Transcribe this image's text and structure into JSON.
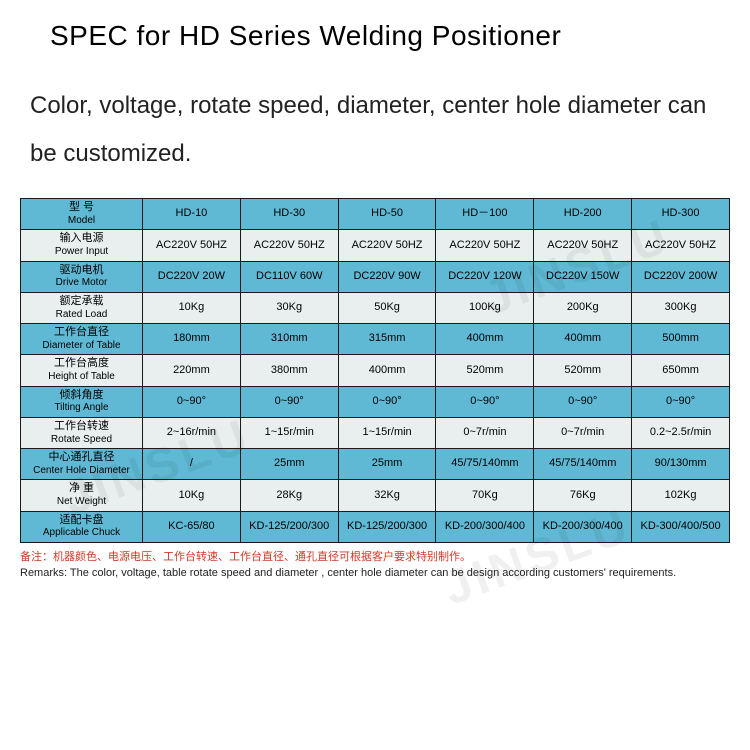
{
  "title": "SPEC for HD Series Welding Positioner",
  "subtitle": "Color, voltage, rotate speed, diameter, center hole diameter can be customized.",
  "watermark": "JINSLU",
  "colors": {
    "header_blue": "#5fb9d4",
    "header_off": "#e9efef",
    "border": "#1a1a1a",
    "remark_red": "#d03a2a",
    "text": "#000000",
    "background": "#ffffff"
  },
  "fonts": {
    "title_pt": 28,
    "subtitle_pt": 24,
    "table_pt": 11,
    "remark_pt": 11
  },
  "table": {
    "type": "table",
    "column_models": [
      "HD-10",
      "HD-30",
      "HD-50",
      "HD－100",
      "HD-200",
      "HD-300"
    ],
    "rows": [
      {
        "cn": "型 号",
        "en": "Model",
        "cells": [
          "HD-10",
          "HD-30",
          "HD-50",
          "HD－100",
          "HD-200",
          "HD-300"
        ],
        "style": "blue"
      },
      {
        "cn": "输入电源",
        "en": "Power Input",
        "cells": [
          "AC220V 50HZ",
          "AC220V 50HZ",
          "AC220V 50HZ",
          "AC220V 50HZ",
          "AC220V 50HZ",
          "AC220V 50HZ"
        ],
        "style": "off"
      },
      {
        "cn": "驱动电机",
        "en": "Drive Motor",
        "cells": [
          "DC220V 20W",
          "DC110V 60W",
          "DC220V 90W",
          "DC220V 120W",
          "DC220V 150W",
          "DC220V 200W"
        ],
        "style": "blue"
      },
      {
        "cn": "额定承载",
        "en": "Rated Load",
        "cells": [
          "10Kg",
          "30Kg",
          "50Kg",
          "100Kg",
          "200Kg",
          "300Kg"
        ],
        "style": "off"
      },
      {
        "cn": "工作台直径",
        "en": "Diameter of Table",
        "cells": [
          "180mm",
          "310mm",
          "315mm",
          "400mm",
          "400mm",
          "500mm"
        ],
        "style": "blue"
      },
      {
        "cn": "工作台高度",
        "en": "Height of Table",
        "cells": [
          "220mm",
          "380mm",
          "400mm",
          "520mm",
          "520mm",
          "650mm"
        ],
        "style": "off"
      },
      {
        "cn": "倾斜角度",
        "en": "Tilting Angle",
        "cells": [
          "0~90°",
          "0~90°",
          "0~90°",
          "0~90°",
          "0~90°",
          "0~90°"
        ],
        "style": "blue"
      },
      {
        "cn": "工作台转速",
        "en": "Rotate Speed",
        "cells": [
          "2~16r/min",
          "1~15r/min",
          "1~15r/min",
          "0~7r/min",
          "0~7r/min",
          "0.2~2.5r/min"
        ],
        "style": "off"
      },
      {
        "cn": "中心通孔直径",
        "en": "Center Hole Diameter",
        "cells": [
          "/",
          "25mm",
          "25mm",
          "45/75/140mm",
          "45/75/140mm",
          "90/130mm"
        ],
        "style": "blue"
      },
      {
        "cn": "净 重",
        "en": "Net Weight",
        "cells": [
          "10Kg",
          "28Kg",
          "32Kg",
          "70Kg",
          "76Kg",
          "102Kg"
        ],
        "style": "off"
      },
      {
        "cn": "适配卡盘",
        "en": "Applicable Chuck",
        "cells": [
          "KC-65/80",
          "KD-125/200/300",
          "KD-125/200/300",
          "KD-200/300/400",
          "KD-200/300/400",
          "KD-300/400/500"
        ],
        "style": "blue"
      }
    ]
  },
  "remarks": {
    "cn": "备注：机器颜色、电源电压、工作台转速、工作台直径、通孔直径可根据客户要求特别制作。",
    "en": "Remarks: The color, voltage, table rotate speed and diameter , center hole diameter can be design according customers' requirements."
  }
}
